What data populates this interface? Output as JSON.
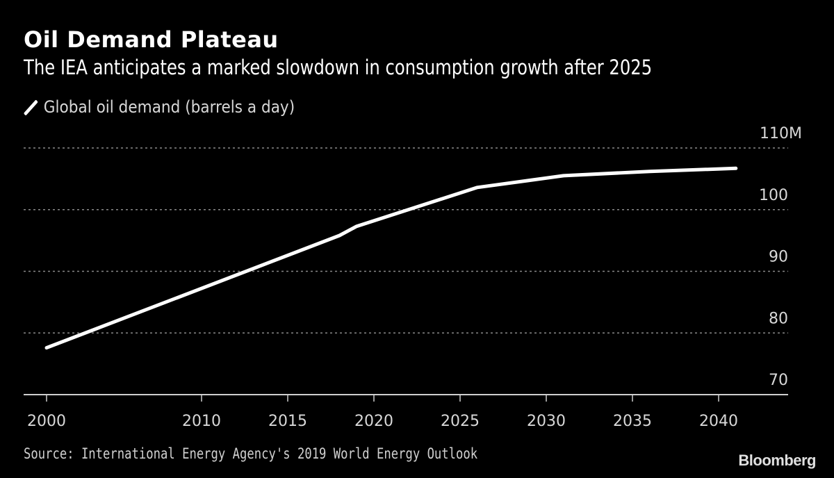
{
  "chart_data": {
    "type": "line",
    "title": "Oil Demand Plateau",
    "subtitle": "The IEA anticipates a marked slowdown in consumption growth after 2025",
    "xlabel": "",
    "ylabel": "",
    "legend": {
      "position": "top-left",
      "entries": [
        "Global oil demand (barrels a day)"
      ]
    },
    "series": [
      {
        "name": "Global oil demand (barrels a day)",
        "color": "#ffffff",
        "x": [
          2000,
          2018,
          2019,
          2026,
          2031,
          2036,
          2041
        ],
        "values": [
          77.6,
          95.8,
          97.3,
          103.6,
          105.5,
          106.2,
          106.7
        ]
      }
    ],
    "x_ticks": [
      {
        "value": 2000,
        "label": "2000"
      },
      {
        "value": 2010,
        "label": "2010"
      },
      {
        "value": 2015,
        "label": "2015"
      },
      {
        "value": 2020,
        "label": "2020"
      },
      {
        "value": 2025,
        "label": "2025"
      },
      {
        "value": 2030,
        "label": "2030"
      },
      {
        "value": 2035,
        "label": "2035"
      },
      {
        "value": 2040,
        "label": "2040"
      }
    ],
    "y_ticks": [
      {
        "value": 110,
        "label": "110M"
      },
      {
        "value": 100,
        "label": "100"
      },
      {
        "value": 90,
        "label": "90"
      },
      {
        "value": 80,
        "label": "80"
      },
      {
        "value": 70,
        "label": "70"
      }
    ],
    "ylim": [
      70,
      110
    ],
    "y_axis_side": "right",
    "grid": true,
    "source": "Source: International Energy Agency's 2019 World Energy Outlook",
    "brand": "Bloomberg"
  }
}
